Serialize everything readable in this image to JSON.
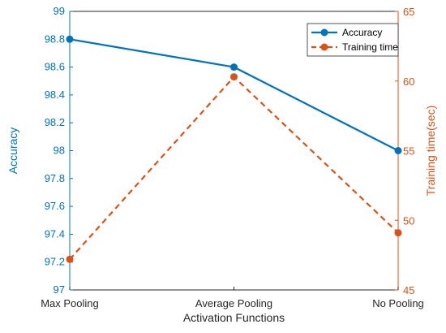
{
  "chart_data": {
    "type": "line",
    "title": "",
    "xlabel": "Activation Functions",
    "ylabel_left": "Accuracy",
    "ylabel_right": "Training time(sec)",
    "categories": [
      "Max Pooling",
      "Average Pooling",
      "No Pooling"
    ],
    "ylim_left": [
      97,
      99
    ],
    "yticks_left": [
      "97",
      "97.2",
      "97.4",
      "97.6",
      "97.8",
      "98",
      "98.2",
      "98.4",
      "98.6",
      "98.8",
      "99"
    ],
    "ylim_right": [
      45,
      65
    ],
    "yticks_right": [
      "45",
      "50",
      "55",
      "60",
      "65"
    ],
    "grid": false,
    "legend_position": "top-right",
    "series": [
      {
        "name": "Accuracy",
        "axis": "left",
        "values": [
          98.8,
          98.6,
          98.0
        ],
        "color": "#0072BD",
        "style": "solid"
      },
      {
        "name": "Training time",
        "axis": "right",
        "values": [
          47.2,
          60.3,
          49.1
        ],
        "color": "#D95319",
        "style": "dashed"
      }
    ],
    "colors": {
      "left_axis": "#0072BD",
      "right_axis": "#D95319",
      "bottom_axis": "#262626"
    }
  }
}
